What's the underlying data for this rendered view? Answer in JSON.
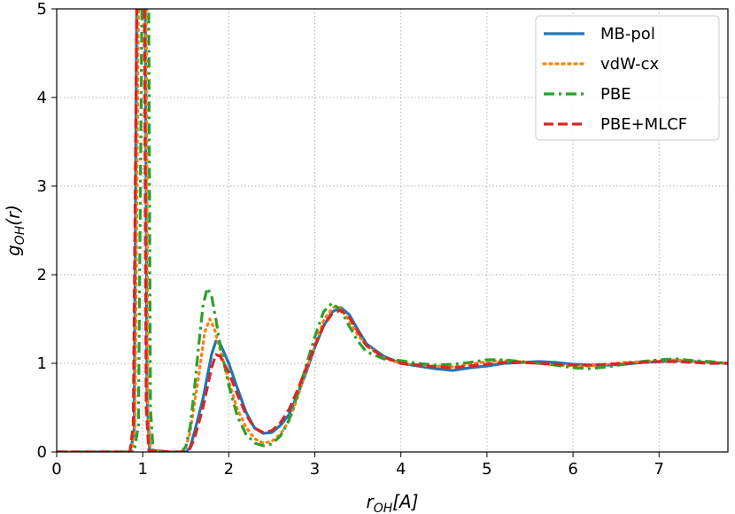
{
  "chart_data": {
    "type": "line",
    "xlabel": "r_OH[A]",
    "ylabel": "g_OH(r)",
    "xlim": [
      0,
      7.8
    ],
    "ylim": [
      0,
      5
    ],
    "xticks": [
      0,
      1,
      2,
      3,
      4,
      5,
      6,
      7
    ],
    "yticks": [
      0,
      1,
      2,
      3,
      4,
      5
    ],
    "grid": true,
    "legend_position": "top-right",
    "series": [
      {
        "name": "MB-pol",
        "color": "#1f77b4",
        "style": "solid",
        "points": [
          [
            0,
            0
          ],
          [
            0.85,
            0
          ],
          [
            0.9,
            0.2
          ],
          [
            0.93,
            5
          ],
          [
            0.97,
            5
          ],
          [
            1.0,
            5
          ],
          [
            1.03,
            5
          ],
          [
            1.05,
            0.6
          ],
          [
            1.08,
            0.02
          ],
          [
            1.3,
            0
          ],
          [
            1.5,
            0
          ],
          [
            1.55,
            0.05
          ],
          [
            1.6,
            0.22
          ],
          [
            1.7,
            0.6
          ],
          [
            1.8,
            1.1
          ],
          [
            1.85,
            1.25
          ],
          [
            1.9,
            1.22
          ],
          [
            2.0,
            1.0
          ],
          [
            2.1,
            0.72
          ],
          [
            2.2,
            0.45
          ],
          [
            2.3,
            0.27
          ],
          [
            2.4,
            0.21
          ],
          [
            2.5,
            0.22
          ],
          [
            2.6,
            0.3
          ],
          [
            2.7,
            0.42
          ],
          [
            2.8,
            0.65
          ],
          [
            2.9,
            0.9
          ],
          [
            3.0,
            1.18
          ],
          [
            3.1,
            1.42
          ],
          [
            3.2,
            1.58
          ],
          [
            3.3,
            1.63
          ],
          [
            3.4,
            1.55
          ],
          [
            3.5,
            1.38
          ],
          [
            3.6,
            1.22
          ],
          [
            3.8,
            1.08
          ],
          [
            4.0,
            1.0
          ],
          [
            4.2,
            0.97
          ],
          [
            4.4,
            0.94
          ],
          [
            4.6,
            0.92
          ],
          [
            4.8,
            0.95
          ],
          [
            5.0,
            0.97
          ],
          [
            5.2,
            1.0
          ],
          [
            5.4,
            1.01
          ],
          [
            5.6,
            1.02
          ],
          [
            5.8,
            1.01
          ],
          [
            6.0,
            0.99
          ],
          [
            6.2,
            0.98
          ],
          [
            6.4,
            0.98
          ],
          [
            6.6,
            0.99
          ],
          [
            6.8,
            1.01
          ],
          [
            7.0,
            1.02
          ],
          [
            7.2,
            1.03
          ],
          [
            7.4,
            1.02
          ],
          [
            7.6,
            1.01
          ],
          [
            7.8,
            1.0
          ]
        ]
      },
      {
        "name": "vdW-cx",
        "color": "#ff7f0e",
        "style": "dotted",
        "points": [
          [
            0,
            0
          ],
          [
            0.87,
            0
          ],
          [
            0.91,
            0.3
          ],
          [
            0.95,
            5
          ],
          [
            0.98,
            5
          ],
          [
            1.01,
            5
          ],
          [
            1.04,
            5
          ],
          [
            1.06,
            0.5
          ],
          [
            1.09,
            0.02
          ],
          [
            1.3,
            0
          ],
          [
            1.45,
            0
          ],
          [
            1.5,
            0.05
          ],
          [
            1.55,
            0.22
          ],
          [
            1.65,
            0.85
          ],
          [
            1.72,
            1.35
          ],
          [
            1.78,
            1.5
          ],
          [
            1.83,
            1.4
          ],
          [
            1.9,
            1.15
          ],
          [
            2.0,
            0.8
          ],
          [
            2.1,
            0.48
          ],
          [
            2.2,
            0.28
          ],
          [
            2.3,
            0.15
          ],
          [
            2.4,
            0.1
          ],
          [
            2.5,
            0.12
          ],
          [
            2.6,
            0.2
          ],
          [
            2.7,
            0.35
          ],
          [
            2.8,
            0.62
          ],
          [
            2.9,
            0.92
          ],
          [
            3.0,
            1.2
          ],
          [
            3.1,
            1.48
          ],
          [
            3.2,
            1.62
          ],
          [
            3.25,
            1.65
          ],
          [
            3.3,
            1.62
          ],
          [
            3.4,
            1.48
          ],
          [
            3.5,
            1.32
          ],
          [
            3.6,
            1.2
          ],
          [
            3.8,
            1.06
          ],
          [
            4.0,
            1.0
          ],
          [
            4.2,
            0.98
          ],
          [
            4.4,
            0.97
          ],
          [
            4.6,
            0.96
          ],
          [
            4.8,
            0.99
          ],
          [
            5.0,
            1.02
          ],
          [
            5.2,
            1.03
          ],
          [
            5.4,
            1.02
          ],
          [
            5.6,
            1.0
          ],
          [
            5.8,
            0.98
          ],
          [
            6.0,
            0.97
          ],
          [
            6.2,
            0.97
          ],
          [
            6.4,
            0.99
          ],
          [
            6.6,
            1.01
          ],
          [
            6.8,
            1.02
          ],
          [
            7.0,
            1.03
          ],
          [
            7.2,
            1.04
          ],
          [
            7.4,
            1.02
          ],
          [
            7.6,
            1.01
          ],
          [
            7.8,
            1.0
          ]
        ]
      },
      {
        "name": "PBE",
        "color": "#2ca02c",
        "style": "dashdot",
        "points": [
          [
            0,
            0
          ],
          [
            0.9,
            0
          ],
          [
            0.95,
            0.3
          ],
          [
            0.99,
            5
          ],
          [
            1.02,
            5
          ],
          [
            1.05,
            5
          ],
          [
            1.07,
            5
          ],
          [
            1.09,
            0.5
          ],
          [
            1.12,
            0.02
          ],
          [
            1.3,
            0
          ],
          [
            1.45,
            0
          ],
          [
            1.5,
            0.06
          ],
          [
            1.55,
            0.28
          ],
          [
            1.6,
            0.7
          ],
          [
            1.65,
            1.2
          ],
          [
            1.7,
            1.65
          ],
          [
            1.75,
            1.85
          ],
          [
            1.8,
            1.76
          ],
          [
            1.85,
            1.5
          ],
          [
            1.9,
            1.2
          ],
          [
            2.0,
            0.75
          ],
          [
            2.1,
            0.4
          ],
          [
            2.2,
            0.2
          ],
          [
            2.3,
            0.1
          ],
          [
            2.4,
            0.07
          ],
          [
            2.5,
            0.09
          ],
          [
            2.6,
            0.18
          ],
          [
            2.7,
            0.36
          ],
          [
            2.8,
            0.65
          ],
          [
            2.9,
            0.98
          ],
          [
            3.0,
            1.3
          ],
          [
            3.1,
            1.58
          ],
          [
            3.2,
            1.68
          ],
          [
            3.3,
            1.6
          ],
          [
            3.4,
            1.42
          ],
          [
            3.5,
            1.25
          ],
          [
            3.6,
            1.13
          ],
          [
            3.8,
            1.05
          ],
          [
            4.0,
            1.03
          ],
          [
            4.2,
            1.0
          ],
          [
            4.4,
            0.98
          ],
          [
            4.6,
            0.99
          ],
          [
            4.8,
            1.01
          ],
          [
            5.0,
            1.04
          ],
          [
            5.2,
            1.04
          ],
          [
            5.4,
            1.02
          ],
          [
            5.6,
            1.0
          ],
          [
            5.8,
            0.98
          ],
          [
            6.0,
            0.95
          ],
          [
            6.2,
            0.94
          ],
          [
            6.4,
            0.96
          ],
          [
            6.6,
            0.99
          ],
          [
            6.8,
            1.02
          ],
          [
            7.0,
            1.04
          ],
          [
            7.2,
            1.05
          ],
          [
            7.4,
            1.03
          ],
          [
            7.6,
            1.02
          ],
          [
            7.8,
            1.0
          ]
        ]
      },
      {
        "name": "PBE+MLCF",
        "color": "#d62728",
        "style": "dashed",
        "points": [
          [
            0,
            0
          ],
          [
            0.85,
            0
          ],
          [
            0.89,
            0.3
          ],
          [
            0.93,
            5
          ],
          [
            0.96,
            5
          ],
          [
            0.99,
            5
          ],
          [
            1.02,
            5
          ],
          [
            1.04,
            0.5
          ],
          [
            1.07,
            0.02
          ],
          [
            1.3,
            0
          ],
          [
            1.5,
            0
          ],
          [
            1.55,
            0.04
          ],
          [
            1.6,
            0.15
          ],
          [
            1.7,
            0.5
          ],
          [
            1.8,
            0.95
          ],
          [
            1.85,
            1.1
          ],
          [
            1.9,
            1.08
          ],
          [
            2.0,
            0.9
          ],
          [
            2.1,
            0.65
          ],
          [
            2.2,
            0.42
          ],
          [
            2.3,
            0.27
          ],
          [
            2.4,
            0.22
          ],
          [
            2.5,
            0.24
          ],
          [
            2.6,
            0.33
          ],
          [
            2.7,
            0.48
          ],
          [
            2.8,
            0.7
          ],
          [
            2.9,
            0.95
          ],
          [
            3.0,
            1.2
          ],
          [
            3.1,
            1.42
          ],
          [
            3.2,
            1.56
          ],
          [
            3.3,
            1.6
          ],
          [
            3.4,
            1.52
          ],
          [
            3.5,
            1.36
          ],
          [
            3.6,
            1.2
          ],
          [
            3.8,
            1.07
          ],
          [
            4.0,
            1.0
          ],
          [
            4.2,
            0.98
          ],
          [
            4.4,
            0.96
          ],
          [
            4.6,
            0.95
          ],
          [
            4.8,
            0.97
          ],
          [
            5.0,
            0.99
          ],
          [
            5.2,
            1.01
          ],
          [
            5.4,
            1.01
          ],
          [
            5.6,
            1.0
          ],
          [
            5.8,
            0.99
          ],
          [
            6.0,
            0.98
          ],
          [
            6.2,
            0.98
          ],
          [
            6.4,
            0.99
          ],
          [
            6.6,
            1.0
          ],
          [
            6.8,
            1.01
          ],
          [
            7.0,
            1.02
          ],
          [
            7.2,
            1.02
          ],
          [
            7.4,
            1.01
          ],
          [
            7.6,
            1.0
          ],
          [
            7.8,
            1.0
          ]
        ]
      }
    ]
  }
}
